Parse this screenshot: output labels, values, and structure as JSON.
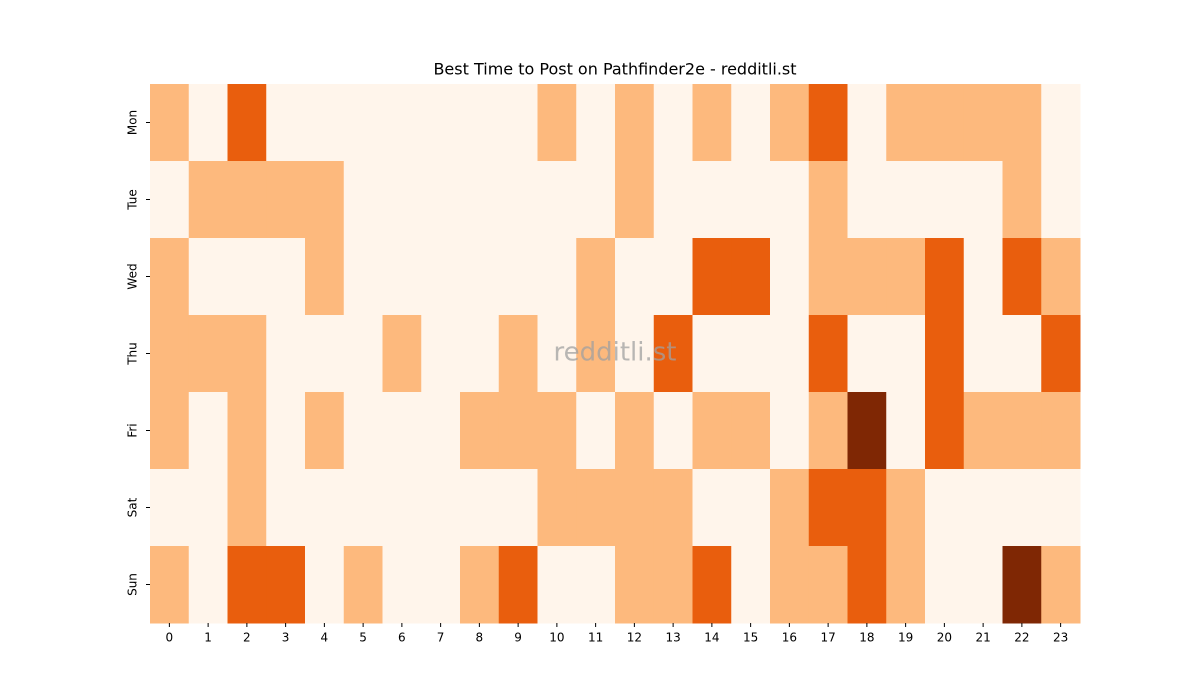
{
  "chart_data": {
    "type": "heatmap",
    "title": "Best Time to Post on Pathfinder2e - redditli.st",
    "watermark": "redditli.st",
    "x_categories": [
      "0",
      "1",
      "2",
      "3",
      "4",
      "5",
      "6",
      "7",
      "8",
      "9",
      "10",
      "11",
      "12",
      "13",
      "14",
      "15",
      "16",
      "17",
      "18",
      "19",
      "20",
      "21",
      "22",
      "23"
    ],
    "y_categories": [
      "Mon",
      "Tue",
      "Wed",
      "Thu",
      "Fri",
      "Sat",
      "Sun"
    ],
    "colors": [
      "#fff5eb",
      "#fdb97d",
      "#e95e0d",
      "#7f2704"
    ],
    "values": [
      [
        1,
        0,
        2,
        0,
        0,
        0,
        0,
        0,
        0,
        0,
        1,
        0,
        1,
        0,
        1,
        0,
        1,
        2,
        0,
        1,
        1,
        1,
        1,
        0
      ],
      [
        0,
        1,
        1,
        1,
        1,
        0,
        0,
        0,
        0,
        0,
        0,
        0,
        1,
        0,
        0,
        0,
        0,
        1,
        0,
        0,
        0,
        0,
        1,
        0
      ],
      [
        1,
        0,
        0,
        0,
        1,
        0,
        0,
        0,
        0,
        0,
        0,
        1,
        0,
        0,
        2,
        2,
        0,
        1,
        1,
        1,
        2,
        0,
        2,
        1
      ],
      [
        1,
        1,
        1,
        0,
        0,
        0,
        1,
        0,
        0,
        1,
        0,
        1,
        0,
        2,
        0,
        0,
        0,
        2,
        0,
        0,
        2,
        0,
        0,
        2
      ],
      [
        1,
        0,
        1,
        0,
        1,
        0,
        0,
        0,
        1,
        1,
        1,
        0,
        1,
        0,
        1,
        1,
        0,
        1,
        3,
        0,
        2,
        1,
        1,
        1
      ],
      [
        0,
        0,
        1,
        0,
        0,
        0,
        0,
        0,
        0,
        0,
        1,
        1,
        1,
        1,
        0,
        0,
        1,
        2,
        2,
        1,
        0,
        0,
        0,
        0
      ],
      [
        1,
        0,
        2,
        2,
        0,
        1,
        0,
        0,
        1,
        2,
        0,
        0,
        1,
        1,
        2,
        0,
        1,
        1,
        2,
        1,
        0,
        0,
        3,
        1
      ]
    ]
  }
}
